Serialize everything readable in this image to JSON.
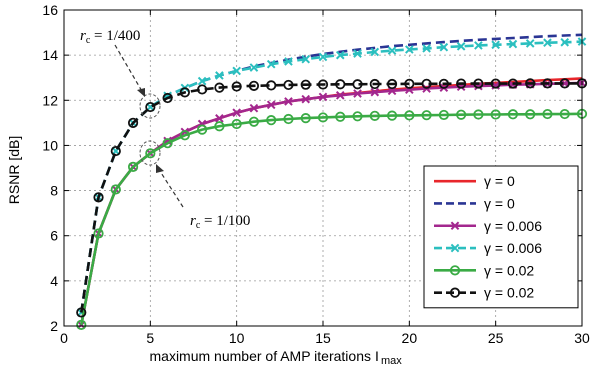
{
  "chart_data": {
    "type": "line",
    "xlabel": "maximum number of AMP iterations",
    "xlabel_symbol": "I",
    "xlabel_subscript": "max",
    "ylabel": "RSNR [dB]",
    "xlim": [
      0,
      30
    ],
    "ylim": [
      2,
      16
    ],
    "xticks": [
      0,
      5,
      10,
      15,
      20,
      25,
      30
    ],
    "yticks": [
      2,
      4,
      6,
      8,
      10,
      12,
      14,
      16
    ],
    "grid": true,
    "legend_position": "bottom-right",
    "annotations": [
      {
        "italic": "r",
        "sub": "c",
        "text": " = 1/400",
        "points_to": {
          "x": 5,
          "y": 11.7
        }
      },
      {
        "italic": "r",
        "sub": "c",
        "text": " = 1/100",
        "points_to": {
          "x": 5,
          "y": 9.7
        }
      }
    ],
    "series": [
      {
        "name": "γ = 0",
        "color": "#e8262b",
        "dash": "solid",
        "marker": "none",
        "x": [
          1,
          2,
          3,
          4,
          5,
          6,
          7,
          8,
          9,
          10,
          11,
          12,
          13,
          14,
          15,
          16,
          17,
          18,
          19,
          20,
          21,
          22,
          23,
          24,
          25,
          26,
          27,
          28,
          29,
          30
        ],
        "y": [
          2.05,
          6.1,
          8.05,
          9.05,
          9.65,
          10.2,
          10.6,
          10.95,
          11.2,
          11.45,
          11.65,
          11.8,
          11.95,
          12.05,
          12.15,
          12.25,
          12.32,
          12.4,
          12.47,
          12.53,
          12.58,
          12.63,
          12.68,
          12.73,
          12.77,
          12.81,
          12.85,
          12.9,
          12.93,
          12.97
        ]
      },
      {
        "name": "γ = 0",
        "color": "#2a3594",
        "dash": "dashed",
        "marker": "none",
        "x": [
          1,
          2,
          3,
          4,
          5,
          6,
          7,
          8,
          9,
          10,
          11,
          12,
          13,
          14,
          15,
          16,
          17,
          18,
          19,
          20,
          21,
          22,
          23,
          24,
          25,
          26,
          27,
          28,
          29,
          30
        ],
        "y": [
          2.6,
          7.7,
          9.75,
          11.0,
          11.7,
          12.2,
          12.55,
          12.85,
          13.1,
          13.3,
          13.5,
          13.65,
          13.8,
          13.93,
          14.05,
          14.15,
          14.24,
          14.32,
          14.4,
          14.46,
          14.52,
          14.58,
          14.63,
          14.68,
          14.72,
          14.76,
          14.8,
          14.84,
          14.87,
          14.9
        ]
      },
      {
        "name": "γ = 0.006",
        "color": "#a3278e",
        "dash": "solid",
        "marker": "x",
        "x": [
          1,
          2,
          3,
          4,
          5,
          6,
          7,
          8,
          9,
          10,
          11,
          12,
          13,
          14,
          15,
          16,
          17,
          18,
          19,
          20,
          21,
          22,
          23,
          24,
          25,
          26,
          27,
          28,
          29,
          30
        ],
        "y": [
          2.05,
          6.1,
          8.05,
          9.05,
          9.65,
          10.2,
          10.6,
          10.95,
          11.2,
          11.45,
          11.65,
          11.8,
          11.95,
          12.05,
          12.15,
          12.22,
          12.3,
          12.36,
          12.42,
          12.47,
          12.52,
          12.56,
          12.6,
          12.63,
          12.66,
          12.69,
          12.71,
          12.73,
          12.75,
          12.77
        ]
      },
      {
        "name": "γ = 0.006",
        "color": "#2bbfbf",
        "dash": "dashed",
        "marker": "x",
        "x": [
          1,
          2,
          3,
          4,
          5,
          6,
          7,
          8,
          9,
          10,
          11,
          12,
          13,
          14,
          15,
          16,
          17,
          18,
          19,
          20,
          21,
          22,
          23,
          24,
          25,
          26,
          27,
          28,
          29,
          30
        ],
        "y": [
          2.6,
          7.7,
          9.75,
          11.0,
          11.7,
          12.2,
          12.55,
          12.85,
          13.1,
          13.3,
          13.45,
          13.6,
          13.72,
          13.82,
          13.92,
          14.0,
          14.07,
          14.14,
          14.2,
          14.25,
          14.3,
          14.35,
          14.39,
          14.43,
          14.46,
          14.49,
          14.52,
          14.55,
          14.57,
          14.6
        ]
      },
      {
        "name": "γ = 0.02",
        "color": "#3aab45",
        "dash": "solid",
        "marker": "o",
        "x": [
          1,
          2,
          3,
          4,
          5,
          6,
          7,
          8,
          9,
          10,
          11,
          12,
          13,
          14,
          15,
          16,
          17,
          18,
          19,
          20,
          21,
          22,
          23,
          24,
          25,
          26,
          27,
          28,
          29,
          30
        ],
        "y": [
          2.05,
          6.1,
          8.05,
          9.05,
          9.65,
          10.1,
          10.45,
          10.7,
          10.85,
          10.95,
          11.05,
          11.12,
          11.17,
          11.21,
          11.24,
          11.27,
          11.29,
          11.31,
          11.32,
          11.33,
          11.34,
          11.35,
          11.36,
          11.37,
          11.37,
          11.38,
          11.38,
          11.39,
          11.39,
          11.4
        ]
      },
      {
        "name": "γ = 0.02",
        "color": "#111111",
        "dash": "dashed",
        "marker": "o",
        "x": [
          1,
          2,
          3,
          4,
          5,
          6,
          7,
          8,
          9,
          10,
          11,
          12,
          13,
          14,
          15,
          16,
          17,
          18,
          19,
          20,
          21,
          22,
          23,
          24,
          25,
          26,
          27,
          28,
          29,
          30
        ],
        "y": [
          2.6,
          7.7,
          9.75,
          11.0,
          11.7,
          12.1,
          12.35,
          12.48,
          12.56,
          12.61,
          12.64,
          12.66,
          12.68,
          12.69,
          12.7,
          12.71,
          12.71,
          12.72,
          12.72,
          12.73,
          12.73,
          12.73,
          12.74,
          12.74,
          12.74,
          12.74,
          12.75,
          12.75,
          12.75,
          12.75
        ]
      }
    ]
  }
}
